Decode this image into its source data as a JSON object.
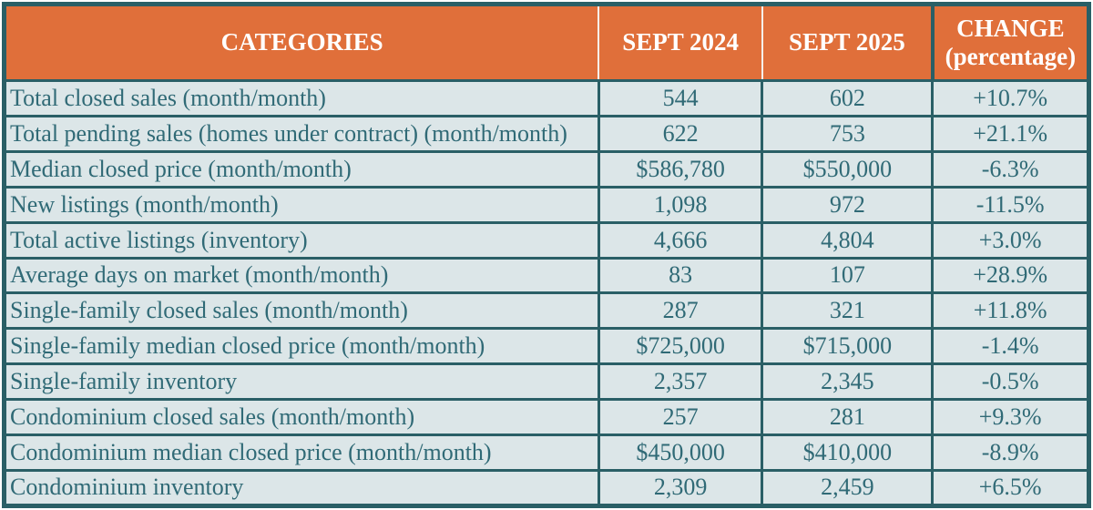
{
  "colors": {
    "header_bg": "#e06f3a",
    "header_text": "#ffffff",
    "border_teal": "#2a5f66",
    "row_bg": "#dce6e8",
    "cell_text": "#306a76",
    "header_separator": "#f6f2ea"
  },
  "chart_data": {
    "type": "table",
    "columns": [
      {
        "label": "CATEGORIES"
      },
      {
        "label": "SEPT 2024"
      },
      {
        "label": "SEPT 2025"
      },
      {
        "label": "CHANGE",
        "sublabel": "(percentage)"
      }
    ],
    "rows": [
      {
        "category": "Total closed sales (month/month)",
        "sept_2024": "544",
        "sept_2025": "602",
        "change": "+10.7%"
      },
      {
        "category": "Total pending sales (homes under contract) (month/month)",
        "sept_2024": "622",
        "sept_2025": "753",
        "change": "+21.1%"
      },
      {
        "category": "Median closed price (month/month)",
        "sept_2024": "$586,780",
        "sept_2025": "$550,000",
        "change": "-6.3%"
      },
      {
        "category": "New listings (month/month)",
        "sept_2024": "1,098",
        "sept_2025": "972",
        "change": "-11.5%"
      },
      {
        "category": "Total active listings (inventory)",
        "sept_2024": "4,666",
        "sept_2025": "4,804",
        "change": "+3.0%"
      },
      {
        "category": "Average days on market (month/month)",
        "sept_2024": "83",
        "sept_2025": "107",
        "change": "+28.9%"
      },
      {
        "category": "Single-family closed sales (month/month)",
        "sept_2024": "287",
        "sept_2025": "321",
        "change": "+11.8%"
      },
      {
        "category": "Single-family median closed price (month/month)",
        "sept_2024": "$725,000",
        "sept_2025": "$715,000",
        "change": "-1.4%"
      },
      {
        "category": "Single-family inventory",
        "sept_2024": "2,357",
        "sept_2025": "2,345",
        "change": "-0.5%"
      },
      {
        "category": "Condominium closed sales (month/month)",
        "sept_2024": "257",
        "sept_2025": "281",
        "change": "+9.3%"
      },
      {
        "category": "Condominium median closed price (month/month)",
        "sept_2024": "$450,000",
        "sept_2025": "$410,000",
        "change": "-8.9%"
      },
      {
        "category": "Condominium inventory",
        "sept_2024": "2,309",
        "sept_2025": "2,459",
        "change": "+6.5%"
      }
    ]
  }
}
